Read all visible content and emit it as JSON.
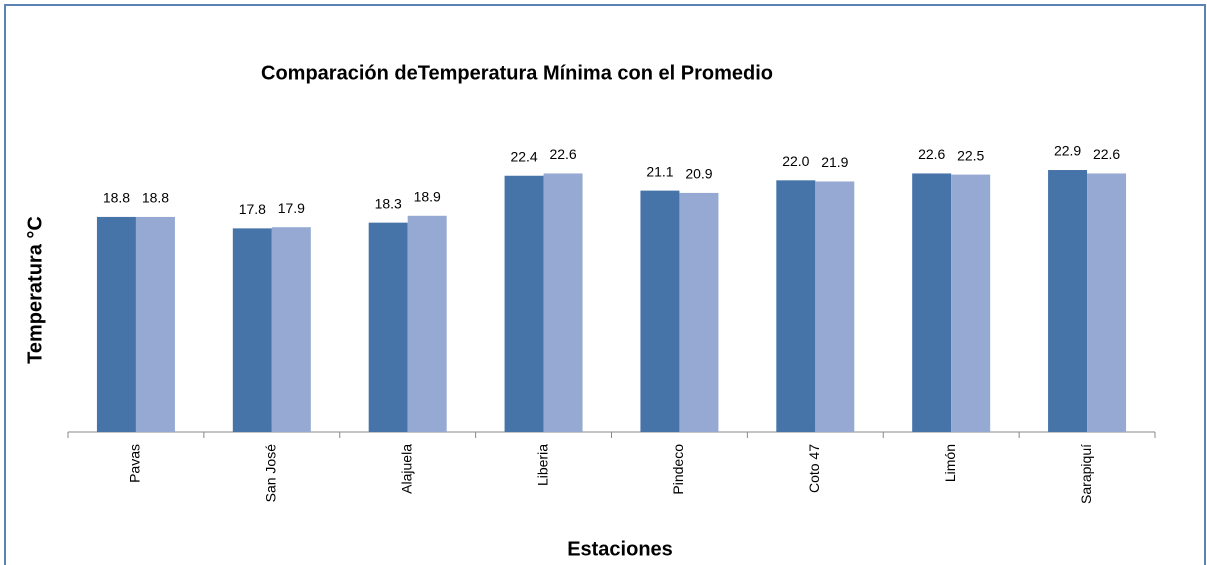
{
  "chart_data": {
    "type": "bar",
    "title": "Comparación deTemperatura Mínima con el Promedio",
    "x_label": "Estaciones",
    "y_label": "Temperatura °C",
    "categories": [
      "Pavas",
      "San José",
      "Alajuela",
      "Liberia",
      "Pindeco",
      "Coto 47",
      "Limón",
      "Sarapiquí"
    ],
    "series": [
      {
        "color": "#4673a8",
        "values": [
          18.8,
          17.8,
          18.3,
          22.4,
          21.1,
          22.0,
          22.6,
          22.9
        ],
        "value_labels": [
          "18.8",
          "17.8",
          "18.3",
          "22.4",
          "21.1",
          "22.0",
          "22.6",
          "22.9"
        ]
      },
      {
        "color": "#95a9d2",
        "values": [
          18.8,
          17.9,
          18.9,
          22.6,
          20.9,
          21.9,
          22.5,
          22.6
        ],
        "value_labels": [
          "18.8",
          "17.9",
          "18.9",
          "22.6",
          "20.9",
          "21.9",
          "22.5",
          "22.6"
        ]
      }
    ],
    "ylim": [
      0,
      25
    ]
  }
}
